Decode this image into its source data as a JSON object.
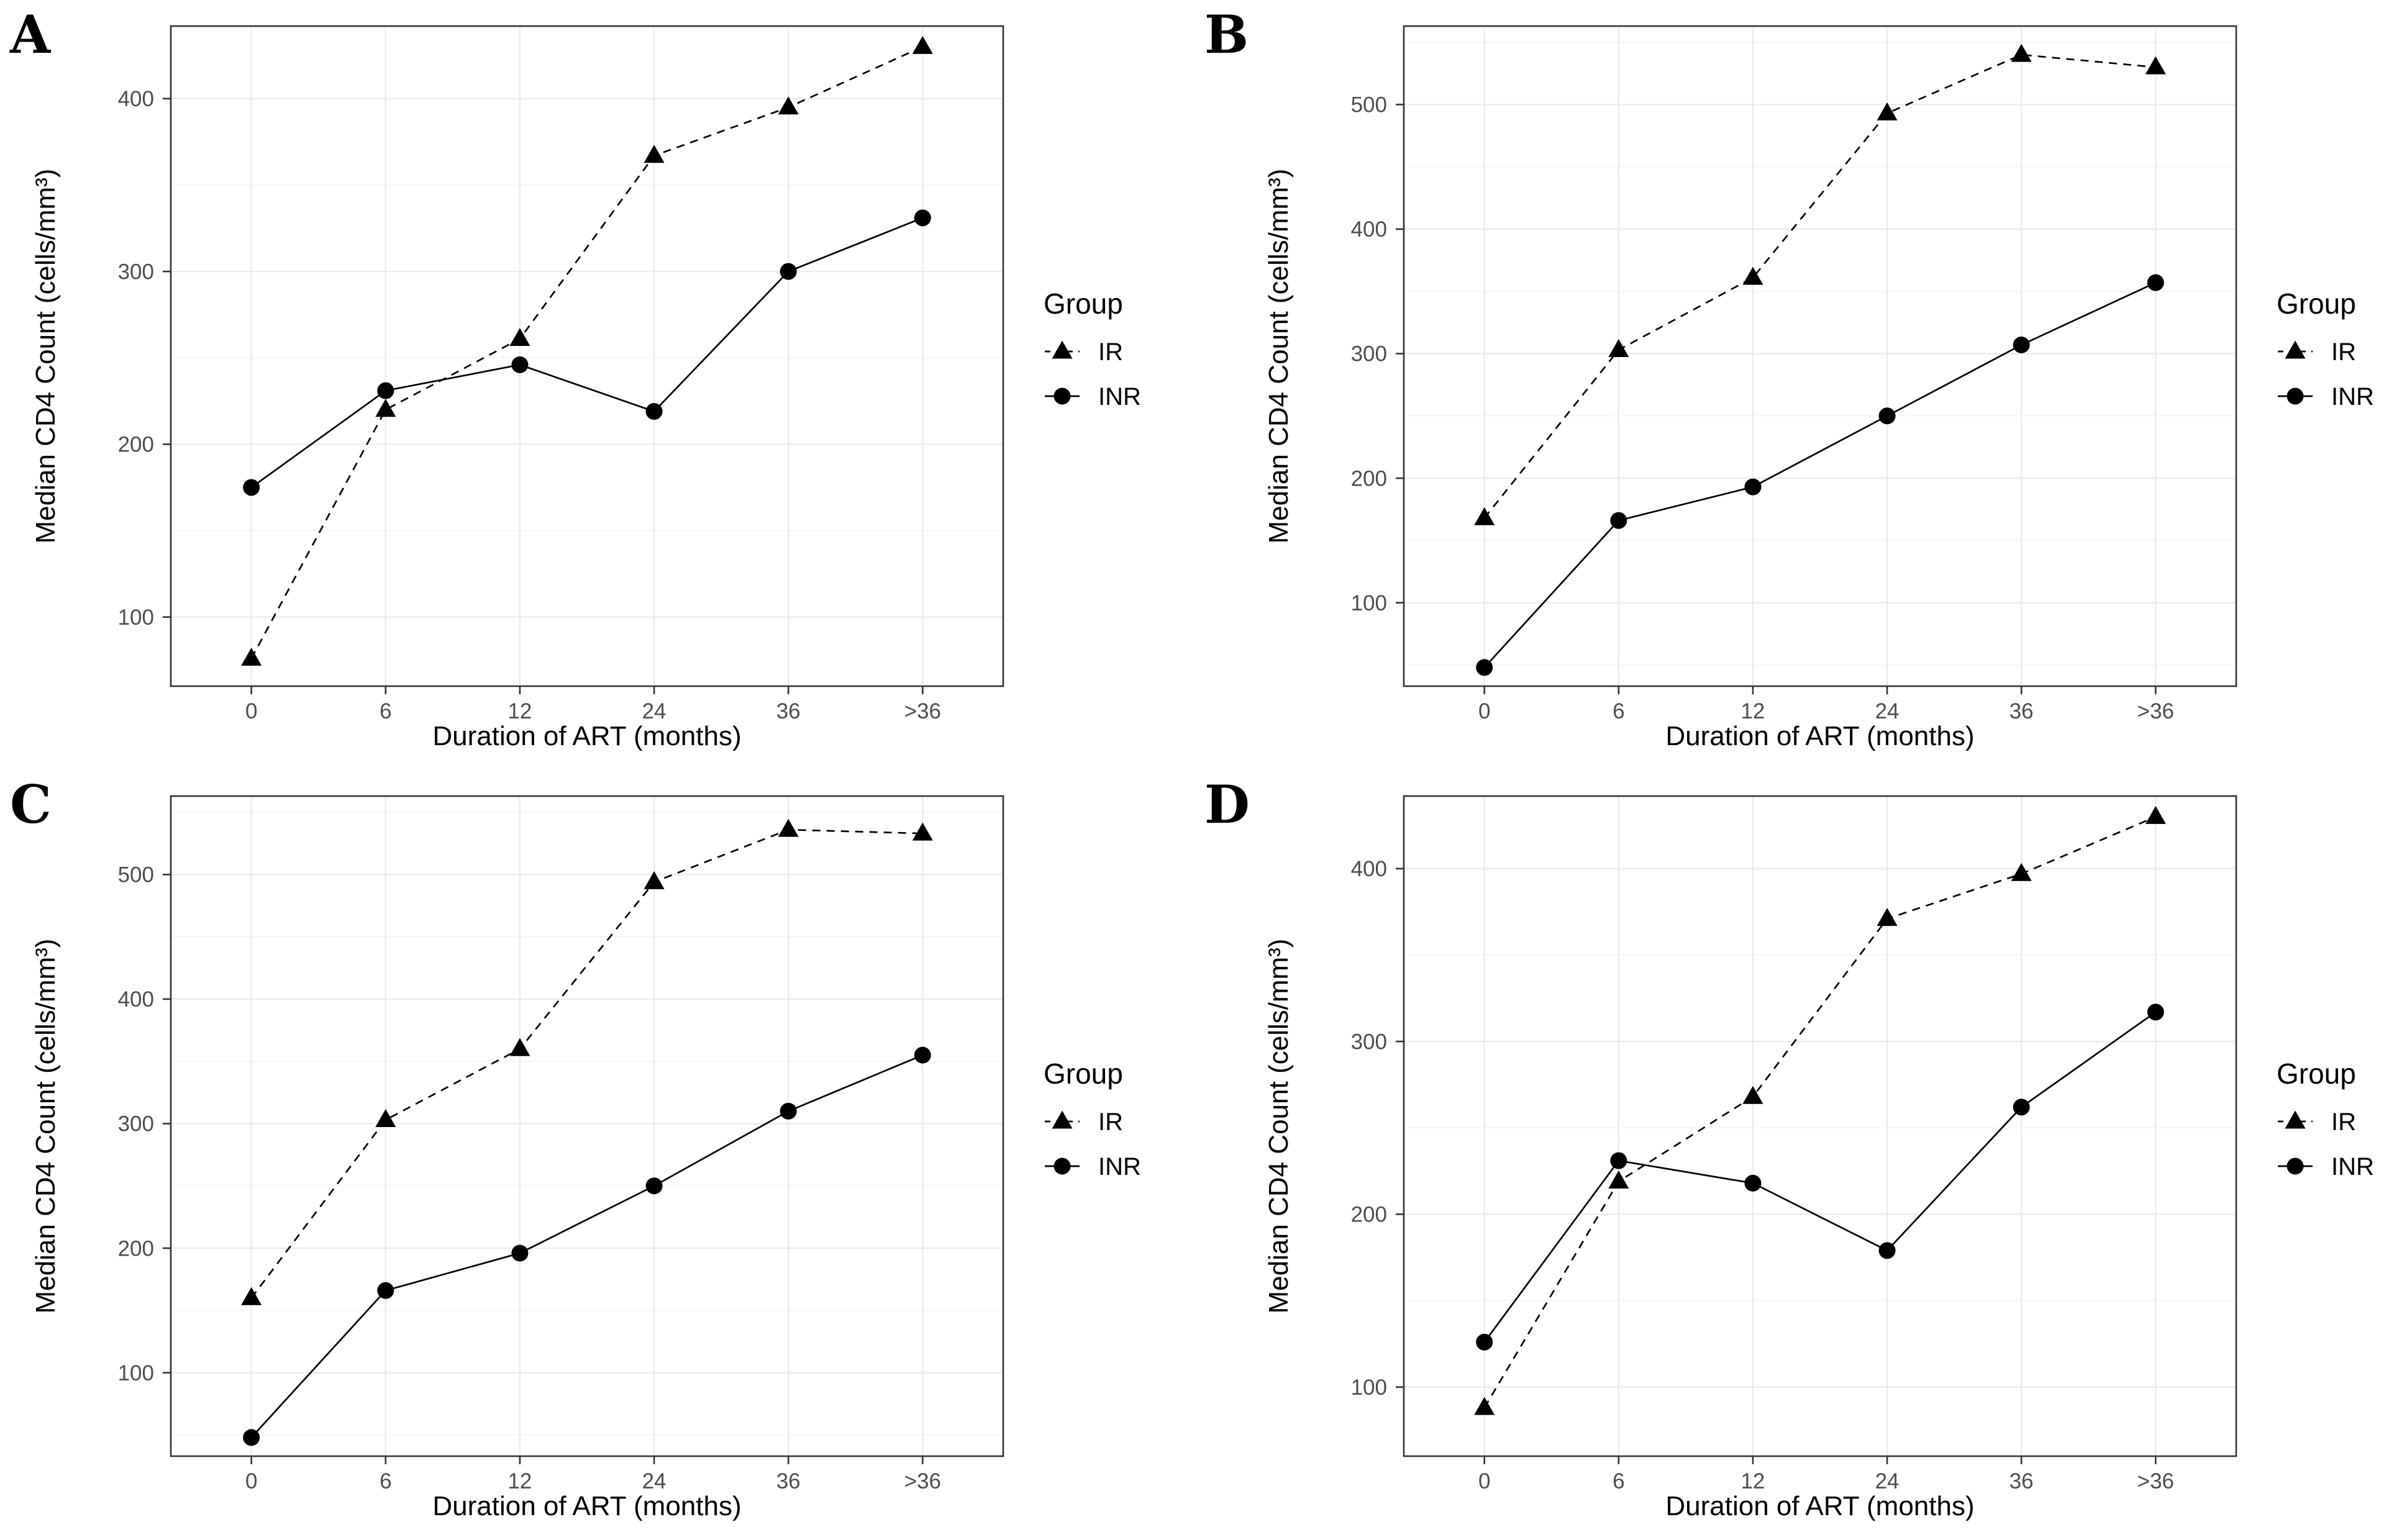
{
  "style": {
    "background": "#ffffff",
    "series_color": "#000000",
    "tick_label_color": "#4d4d4d",
    "axis_title_color": "#000000",
    "legend_text_color": "#000000",
    "grid_major_color": "#ebebeb",
    "grid_minor_color": "#f0f0f0",
    "panel_border_color": "#333333"
  },
  "chart_data": [
    {
      "type": "line",
      "label": "A",
      "xlabel": "Duration of ART (months)",
      "ylabel": "Median CD4 Count (cells/mm³)",
      "categories": [
        "0",
        "6",
        "12",
        "24",
        "36",
        ">36"
      ],
      "yticks": [
        100,
        200,
        300,
        400
      ],
      "ylim": [
        60,
        442
      ],
      "grid": true,
      "legend": {
        "title": "Group",
        "position": "right"
      },
      "series": [
        {
          "name": "IR",
          "marker": "triangle",
          "linestyle": "dashed",
          "values": [
            76,
            220,
            261,
            367,
            395,
            430
          ]
        },
        {
          "name": "INR",
          "marker": "circle",
          "linestyle": "solid",
          "values": [
            175,
            231,
            246,
            219,
            300,
            331
          ]
        }
      ]
    },
    {
      "type": "line",
      "label": "B",
      "xlabel": "Duration of ART (months)",
      "ylabel": "Median CD4 Count (cells/mm³)",
      "categories": [
        "0",
        "6",
        "12",
        "24",
        "36",
        ">36"
      ],
      "yticks": [
        100,
        200,
        300,
        400,
        500
      ],
      "ylim": [
        33,
        563
      ],
      "grid": true,
      "legend": {
        "title": "Group",
        "position": "right"
      },
      "series": [
        {
          "name": "IR",
          "marker": "triangle",
          "linestyle": "dashed",
          "values": [
            168,
            303,
            361,
            493,
            540,
            530
          ]
        },
        {
          "name": "INR",
          "marker": "circle",
          "linestyle": "solid",
          "values": [
            48,
            166,
            193,
            250,
            307,
            357
          ]
        }
      ]
    },
    {
      "type": "line",
      "label": "C",
      "xlabel": "Duration of ART (months)",
      "ylabel": "Median CD4 Count (cells/mm³)",
      "categories": [
        "0",
        "6",
        "12",
        "24",
        "36",
        ">36"
      ],
      "yticks": [
        100,
        200,
        300,
        400,
        500
      ],
      "ylim": [
        33,
        563
      ],
      "grid": true,
      "legend": {
        "title": "Group",
        "position": "right"
      },
      "series": [
        {
          "name": "IR",
          "marker": "triangle",
          "linestyle": "dashed",
          "values": [
            160,
            303,
            360,
            494,
            536,
            533
          ]
        },
        {
          "name": "INR",
          "marker": "circle",
          "linestyle": "solid",
          "values": [
            48,
            166,
            196,
            250,
            310,
            355
          ]
        }
      ]
    },
    {
      "type": "line",
      "label": "D",
      "xlabel": "Duration of ART (months)",
      "ylabel": "Median CD4 Count (cells/mm³)",
      "categories": [
        "0",
        "6",
        "12",
        "24",
        "36",
        ">36"
      ],
      "yticks": [
        100,
        200,
        300,
        400
      ],
      "ylim": [
        60,
        442
      ],
      "grid": true,
      "legend": {
        "title": "Group",
        "position": "right"
      },
      "series": [
        {
          "name": "IR",
          "marker": "triangle",
          "linestyle": "dashed",
          "values": [
            88,
            219,
            268,
            371,
            397,
            430
          ]
        },
        {
          "name": "INR",
          "marker": "circle",
          "linestyle": "solid",
          "values": [
            126,
            231,
            218,
            179,
            262,
            317
          ]
        }
      ]
    }
  ]
}
